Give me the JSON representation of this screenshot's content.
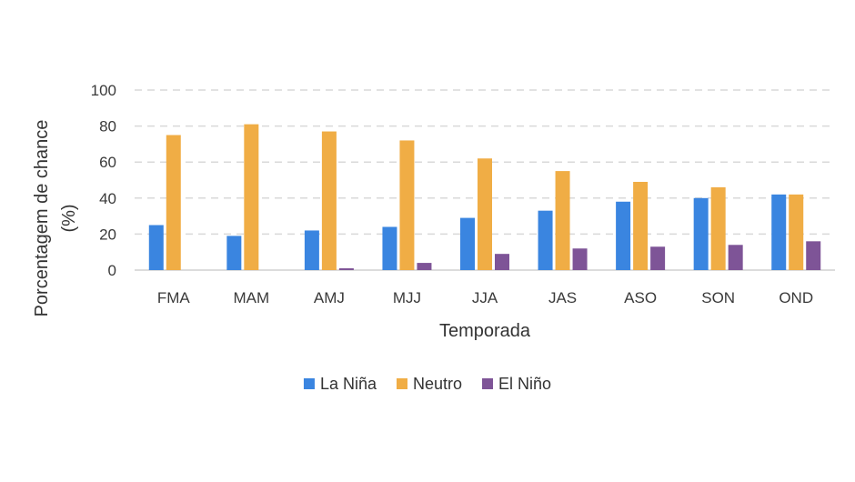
{
  "chart_data": {
    "type": "bar",
    "xlabel": "Temporada",
    "ylabel_line1": "Porcentagem de chance",
    "ylabel_line2": "(%)",
    "ylim": [
      0,
      100
    ],
    "yticks": [
      0,
      20,
      40,
      60,
      80,
      100
    ],
    "categories": [
      "FMA",
      "MAM",
      "AMJ",
      "MJJ",
      "JJA",
      "JAS",
      "ASO",
      "SON",
      "OND"
    ],
    "series": [
      {
        "name": "La Niña",
        "color": "#3a85e0",
        "values": [
          25,
          19,
          22,
          24,
          29,
          33,
          38,
          40,
          42
        ]
      },
      {
        "name": "Neutro",
        "color": "#f0ad45",
        "values": [
          75,
          81,
          77,
          72,
          62,
          55,
          49,
          46,
          42
        ]
      },
      {
        "name": "El Niño",
        "color": "#7e5497",
        "values": [
          0,
          0,
          1,
          4,
          9,
          12,
          13,
          14,
          16
        ]
      }
    ],
    "grid": true,
    "legend_position": "bottom-center"
  }
}
